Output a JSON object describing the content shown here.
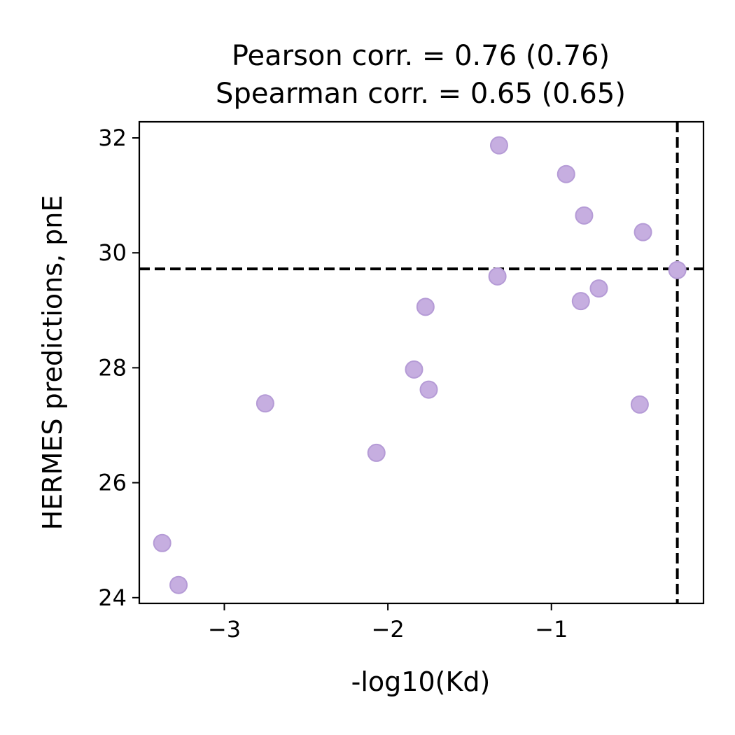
{
  "chart_data": {
    "type": "scatter",
    "title_lines": [
      "Pearson corr. = 0.76 (0.76)",
      "Spearman corr. = 0.65 (0.65)"
    ],
    "xlabel": "-log10(Kd)",
    "ylabel": "HERMES predictions, pnE",
    "xlim": [
      -3.52,
      -0.07
    ],
    "ylim": [
      23.9,
      32.28
    ],
    "xticks": [
      -3,
      -2,
      -1
    ],
    "xtick_labels": [
      "−3",
      "−2",
      "−1"
    ],
    "yticks": [
      24,
      26,
      28,
      30,
      32
    ],
    "ytick_labels": [
      "24",
      "26",
      "28",
      "30",
      "32"
    ],
    "grid": false,
    "reference_lines": {
      "vertical_x": -0.23,
      "horizontal_y": 29.72,
      "style": "dashed",
      "color": "#000000"
    },
    "marker_color": "#c6aee0",
    "marker_edge_color": "#b59bd6",
    "points": [
      {
        "x": -3.38,
        "y": 24.95
      },
      {
        "x": -3.28,
        "y": 24.22
      },
      {
        "x": -2.75,
        "y": 27.38
      },
      {
        "x": -2.07,
        "y": 26.52
      },
      {
        "x": -1.84,
        "y": 27.97
      },
      {
        "x": -1.75,
        "y": 27.62
      },
      {
        "x": -1.77,
        "y": 29.06
      },
      {
        "x": -1.32,
        "y": 31.87
      },
      {
        "x": -1.33,
        "y": 29.59
      },
      {
        "x": -0.91,
        "y": 31.37
      },
      {
        "x": -0.8,
        "y": 30.65
      },
      {
        "x": -0.82,
        "y": 29.16
      },
      {
        "x": -0.71,
        "y": 29.38
      },
      {
        "x": -0.44,
        "y": 30.36
      },
      {
        "x": -0.46,
        "y": 27.36
      },
      {
        "x": -0.23,
        "y": 29.7
      }
    ]
  }
}
